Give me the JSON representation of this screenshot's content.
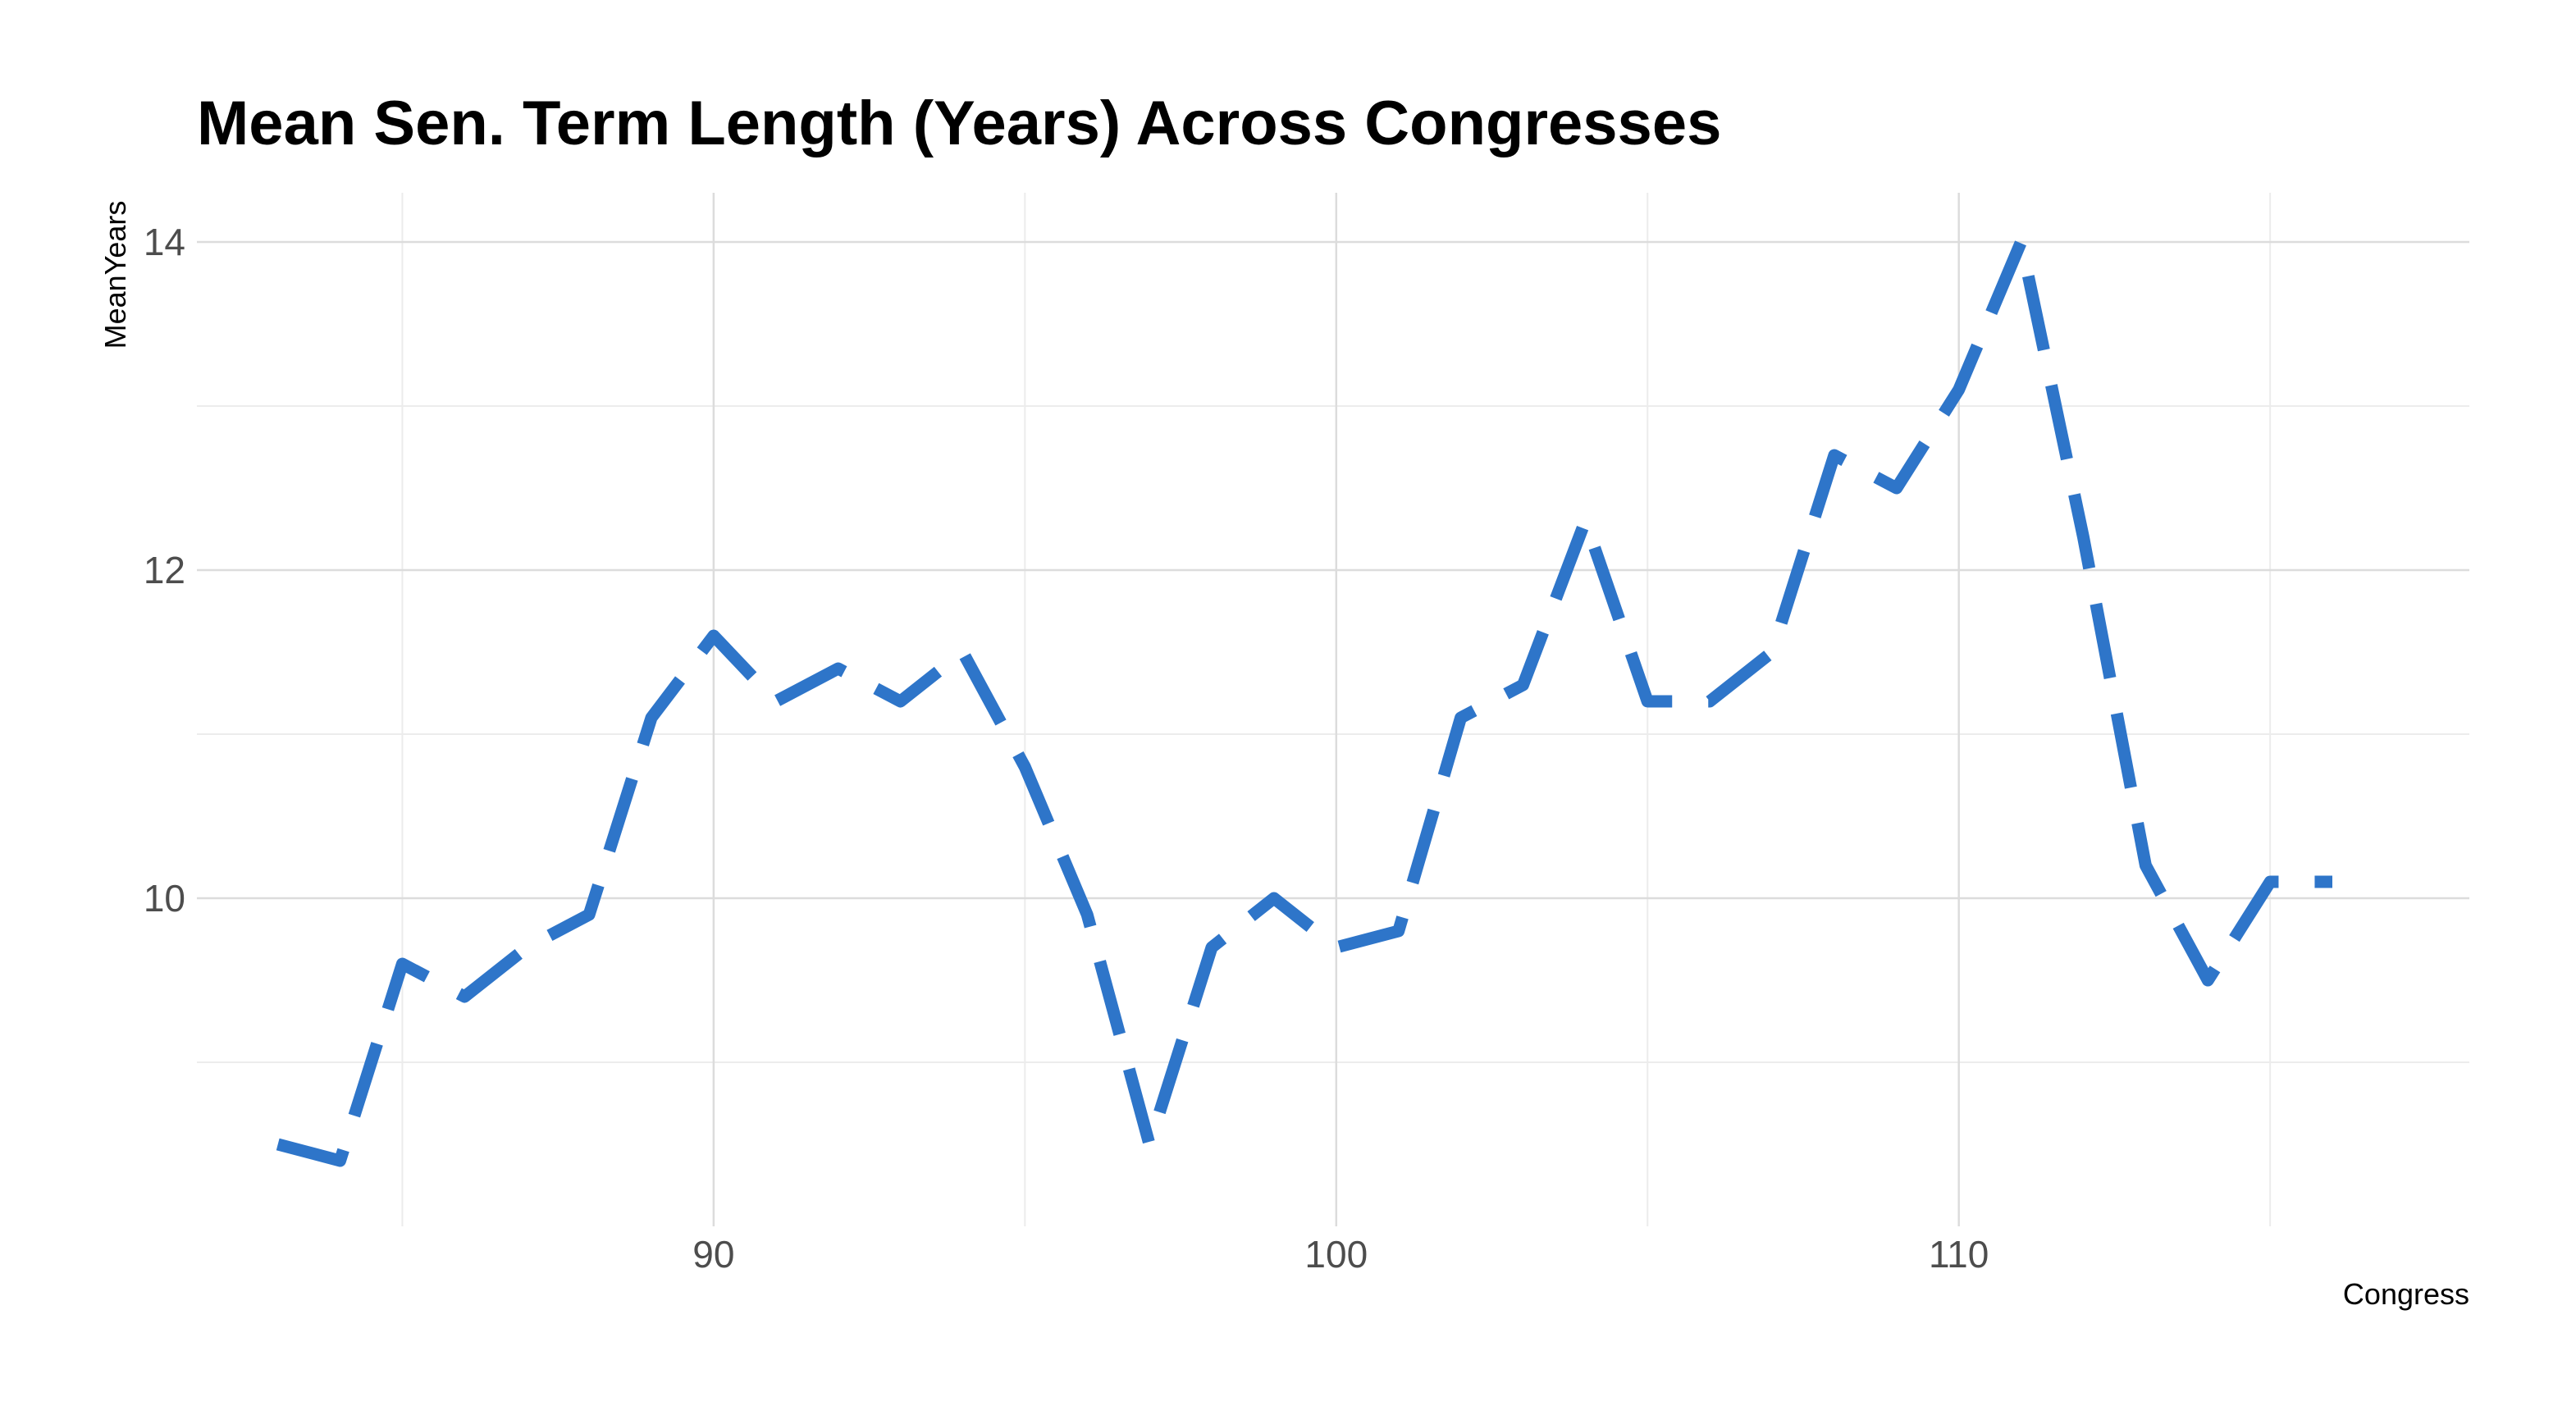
{
  "chart_data": {
    "type": "line",
    "title": "Mean Sen. Term Length (Years) Across Congresses",
    "xlabel": "Congress",
    "ylabel": "MeanYears",
    "xlim": [
      81.7,
      118.2
    ],
    "ylim": [
      8.0,
      14.3
    ],
    "x_ticks": [
      90,
      100,
      110
    ],
    "x_minor_ticks": [
      85,
      95,
      105,
      115
    ],
    "y_ticks": [
      10,
      12,
      14
    ],
    "y_minor_ticks": [
      9,
      11,
      13
    ],
    "grid": true,
    "line_color": "#2E75C9",
    "line_style": "dashed",
    "series": [
      {
        "x": [
          83,
          84,
          85,
          86,
          87,
          88,
          89,
          90,
          91,
          92,
          93,
          94,
          95,
          96,
          97,
          98,
          99,
          100,
          101,
          102,
          103,
          104,
          105,
          106,
          107,
          108,
          109,
          110,
          111,
          112,
          113,
          114,
          115,
          116
        ],
        "values": [
          8.5,
          8.4,
          9.6,
          9.4,
          9.7,
          9.9,
          11.1,
          11.6,
          11.2,
          11.4,
          11.2,
          11.5,
          10.8,
          9.9,
          8.5,
          9.7,
          10.0,
          9.7,
          9.8,
          11.1,
          11.3,
          12.3,
          11.2,
          11.2,
          11.5,
          12.7,
          12.5,
          13.1,
          14.0,
          12.2,
          10.2,
          9.5,
          10.1,
          10.1
        ]
      }
    ]
  }
}
